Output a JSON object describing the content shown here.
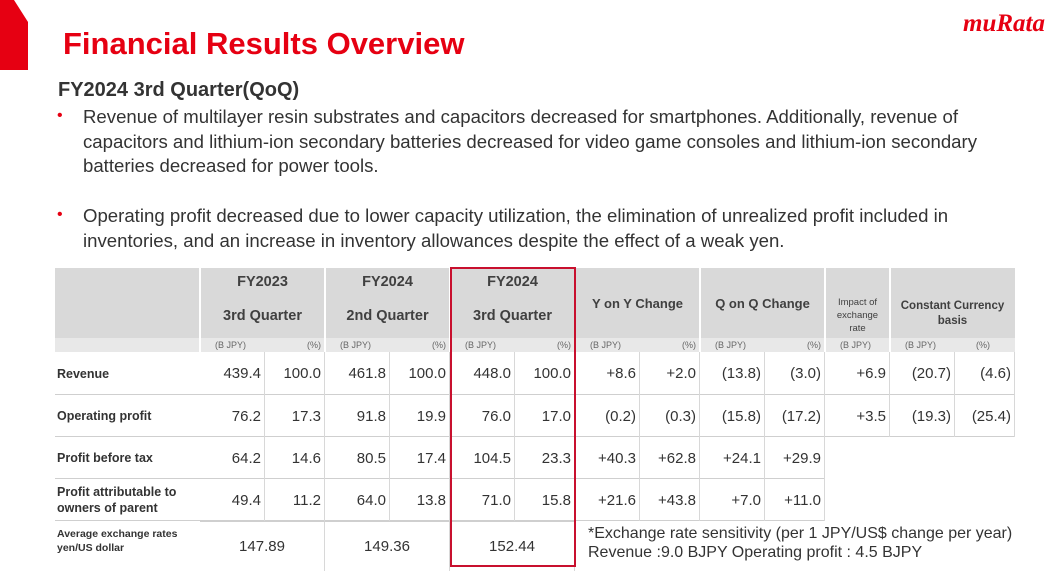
{
  "logo": "muRata",
  "header": {
    "title": "Financial Results Overview",
    "subtitle": "FY2024 3rd Quarter(QoQ)"
  },
  "bullets": [
    "Revenue of multilayer resin substrates and capacitors decreased for smartphones. Additionally, revenue of capacitors and lithium-ion secondary batteries decreased for video game consoles and lithium-ion secondary batteries decreased for power tools.",
    "Operating profit decreased due to lower capacity utilization, the elimination of unrealized profit included in inventories, and an increase in inventory allowances despite the effect of a weak yen."
  ],
  "table": {
    "periods": [
      {
        "year": "FY2023",
        "quarter": "3rd Quarter"
      },
      {
        "year": "FY2024",
        "quarter": "2nd Quarter"
      },
      {
        "year": "FY2024",
        "quarter": "3rd Quarter"
      }
    ],
    "changes": [
      "Y on Y Change",
      "Q on Q Change"
    ],
    "impact": "Impact of exchange rate",
    "constant": "Constant Currency basis",
    "units": [
      "(B JPY)",
      "(%)",
      "(B JPY)",
      "(%)",
      "(B JPY)",
      "(%)",
      "(B JPY)",
      "(%)",
      "(B JPY)",
      "(%)",
      "(B JPY)",
      "(B JPY)",
      "(%)"
    ],
    "rows": [
      {
        "label": "Revenue",
        "cells": [
          "439.4",
          "100.0",
          "461.8",
          "100.0",
          "448.0",
          "100.0",
          "+8.6",
          "+2.0",
          "(13.8)",
          "(3.0)",
          "+6.9",
          "(20.7)",
          "(4.6)"
        ]
      },
      {
        "label": "Operating profit",
        "cells": [
          "76.2",
          "17.3",
          "91.8",
          "19.9",
          "76.0",
          "17.0",
          "(0.2)",
          "(0.3)",
          "(15.8)",
          "(17.2)",
          "+3.5",
          "(19.3)",
          "(25.4)"
        ]
      },
      {
        "label": "Profit before tax",
        "cells": [
          "64.2",
          "14.6",
          "80.5",
          "17.4",
          "104.5",
          "23.3",
          "+40.3",
          "+62.8",
          "+24.1",
          "+29.9"
        ]
      },
      {
        "label": "Profit attributable to owners of parent",
        "cells": [
          "49.4",
          "11.2",
          "64.0",
          "13.8",
          "71.0",
          "15.8",
          "+21.6",
          "+43.8",
          "+7.0",
          "+11.0"
        ]
      }
    ],
    "rates": {
      "label": "Average exchange rates yen/US dollar",
      "cells": [
        "147.89",
        "149.36",
        "152.44"
      ]
    }
  },
  "footnote": [
    "*Exchange rate sensitivity (per 1 JPY/US$ change per year)",
    "Revenue :9.0 BJPY Operating profit : 4.5 BJPY"
  ]
}
